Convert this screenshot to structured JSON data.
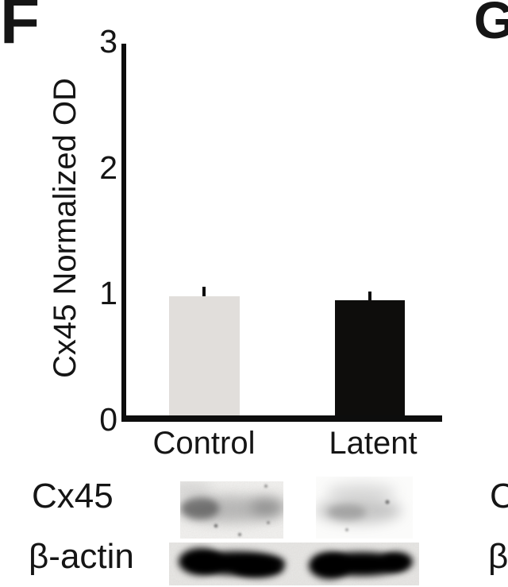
{
  "panel_label": "F",
  "next_panel_label": "G",
  "chart_data": {
    "type": "bar",
    "title": "",
    "ylabel": "Cx45 Normalized OD",
    "xlabel": "",
    "categories": [
      "Control",
      "Latent"
    ],
    "values": [
      1.0,
      0.97
    ],
    "errors_plus": [
      0.08,
      0.07
    ],
    "yticks": [
      "0",
      "1",
      "2",
      "3"
    ],
    "ylim": [
      0,
      3
    ],
    "bar_colors": [
      "#e1dedb",
      "#0e0d0c"
    ],
    "axis_color": "#0d0d0d",
    "grid": false,
    "legend": "none"
  },
  "blot": {
    "rows": [
      {
        "label": "Cx45"
      },
      {
        "label": "β-actin"
      }
    ]
  },
  "next_panel_partial": {
    "row1_label": "C",
    "row2_label": "β"
  }
}
